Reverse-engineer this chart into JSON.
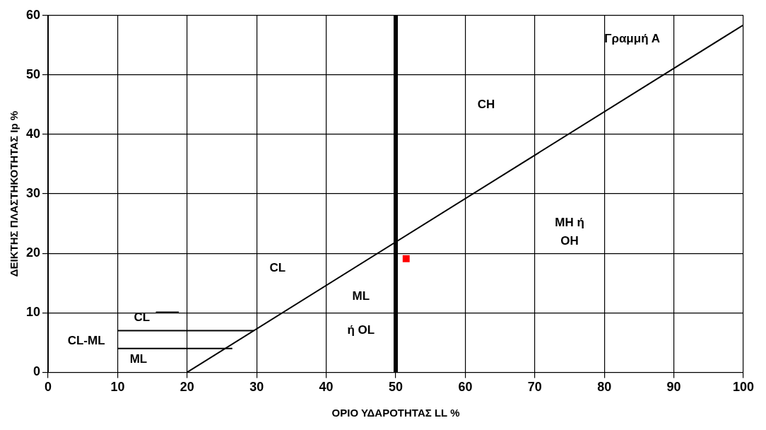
{
  "chart_data": {
    "type": "line",
    "xlabel": "ΟΡΙΟ ΥΔΑΡΟΤΗΤΑΣ LL %",
    "ylabel": "ΔΕΙΚΤΗΣ ΠΛΑΣΤΗΚΟΤΗΤΑΣ Ip %",
    "xlim": [
      0,
      100
    ],
    "xticks": [
      0,
      10,
      20,
      30,
      40,
      50,
      60,
      70,
      80,
      90,
      100
    ],
    "ylim": [
      0,
      60
    ],
    "yticks": [
      0,
      10,
      20,
      30,
      40,
      50,
      60
    ],
    "grid": true,
    "legend": false,
    "series": [
      {
        "color": "#000000",
        "x": [
          20,
          100
        ],
        "values": [
          0,
          58.4
        ],
        "marker": "none"
      },
      {
        "color": "#000000",
        "x": [
          10,
          29.6
        ],
        "values": [
          7,
          7
        ],
        "marker": "none"
      },
      {
        "color": "#000000",
        "x": [
          10,
          26.5
        ],
        "values": [
          4,
          4
        ],
        "marker": "none"
      },
      {
        "color": "#000000",
        "x": [
          15.5,
          18.8
        ],
        "values": [
          10.1,
          10.1
        ],
        "marker": "none"
      },
      {
        "type": "scatter",
        "color": "#ff0000",
        "x": [
          51.5
        ],
        "values": [
          19.1
        ],
        "marker": "square"
      }
    ],
    "ref_lines": [
      {
        "axis": "x",
        "value": 50,
        "color": "#000000"
      }
    ],
    "annotations": [
      "Γραμμή Α",
      "CH",
      "MH ή\nOH",
      "CL",
      "ML",
      "ή OL",
      "CL",
      "CL-ML",
      "ML"
    ]
  }
}
